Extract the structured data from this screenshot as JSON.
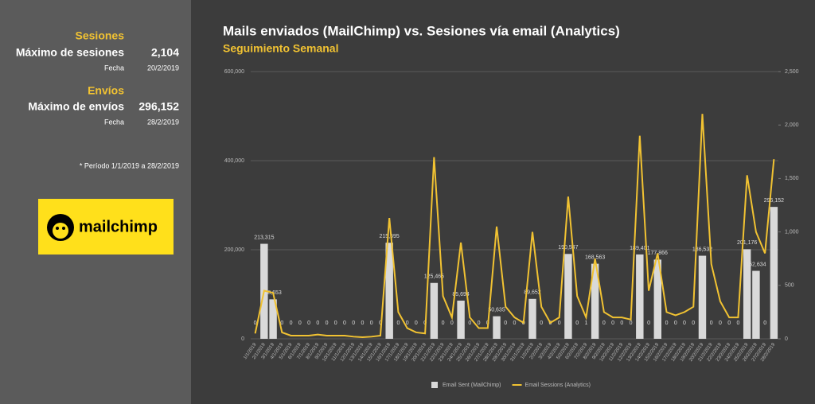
{
  "sidebar": {
    "sessions": {
      "heading": "Sesiones",
      "label": "Máximo de sesiones",
      "value": "2,104",
      "date_label": "Fecha",
      "date": "20/2/2019"
    },
    "sends": {
      "heading": "Envíos",
      "label": "Máximo de envíos",
      "value": "296,152",
      "date_label": "Fecha",
      "date": "28/2/2019"
    },
    "note": "* Período 1/1/2019 a 28/2/2019",
    "logo": "mailchimp"
  },
  "chart_data": {
    "type": "combo",
    "title": "Mails enviados (MailChimp) vs. Sesiones vía email (Analytics)",
    "subtitle": "Seguimiento Semanal",
    "categories": [
      "1/1/2019",
      "2/1/2019",
      "3/1/2019",
      "4/1/2019",
      "5/1/2019",
      "6/1/2019",
      "7/1/2019",
      "8/1/2019",
      "9/1/2019",
      "10/1/2019",
      "11/1/2019",
      "12/1/2019",
      "13/1/2019",
      "14/1/2019",
      "15/1/2019",
      "16/1/2019",
      "17/1/2019",
      "18/1/2019",
      "19/1/2019",
      "20/1/2019",
      "21/1/2019",
      "22/1/2019",
      "23/1/2019",
      "24/1/2019",
      "25/1/2019",
      "26/1/2019",
      "27/1/2019",
      "28/1/2019",
      "29/1/2019",
      "30/1/2019",
      "31/1/2019",
      "1/2/2019",
      "2/2/2019",
      "3/2/2019",
      "4/2/2019",
      "5/2/2019",
      "6/2/2019",
      "7/2/2019",
      "8/2/2019",
      "9/2/2019",
      "10/2/2019",
      "11/2/2019",
      "12/2/2019",
      "13/2/2019",
      "14/2/2019",
      "15/2/2019",
      "16/2/2019",
      "17/2/2019",
      "18/2/2019",
      "19/2/2019",
      "20/2/2019",
      "21/2/2019",
      "22/2/2019",
      "23/2/2019",
      "24/2/2019",
      "25/2/2019",
      "26/2/2019",
      "27/2/2019",
      "28/2/2019"
    ],
    "series": [
      {
        "name": "Email Sent (MailChimp)",
        "type": "bar",
        "color": "#d9d9d9",
        "values": [
          0,
          213315,
          88653,
          0,
          0,
          0,
          0,
          0,
          0,
          0,
          0,
          0,
          0,
          0,
          0,
          215695,
          0,
          0,
          0,
          0,
          125465,
          0,
          0,
          85694,
          0,
          0,
          0,
          50635,
          0,
          0,
          0,
          89652,
          0,
          0,
          0,
          190547,
          0,
          1,
          168563,
          0,
          0,
          0,
          0,
          189401,
          0,
          177866,
          0,
          0,
          0,
          0,
          186532,
          0,
          0,
          0,
          0,
          201176,
          152634,
          0,
          296152
        ],
        "value_labels": [
          "0",
          "213,315",
          "88,653",
          "0",
          "0",
          "0",
          "0",
          "0",
          "0",
          "0",
          "0",
          "0",
          "0",
          "0",
          "0",
          "215,695",
          "0",
          "0",
          "0",
          "0",
          "125,465",
          "0",
          "0",
          "85,694",
          "0",
          "0",
          "0",
          "50,635",
          "0",
          "0",
          "0",
          "89,652",
          "0",
          "0",
          "0",
          "190,547",
          "0",
          "1",
          "168,563",
          "0",
          "0",
          "0",
          "0",
          "189,401",
          "0",
          "177,866",
          "0",
          "0",
          "0",
          "0",
          "186,532",
          "0",
          "0",
          "0",
          "0",
          "201,176",
          "152,634",
          "0",
          "296,152"
        ]
      },
      {
        "name": "Email Sessions (Analytics)",
        "type": "line",
        "axis": "y2",
        "color": "#f1c232",
        "values": [
          50,
          450,
          430,
          60,
          30,
          30,
          30,
          40,
          30,
          30,
          30,
          20,
          15,
          20,
          30,
          1130,
          250,
          100,
          60,
          50,
          1700,
          400,
          200,
          900,
          200,
          100,
          100,
          1050,
          300,
          200,
          150,
          1000,
          300,
          150,
          200,
          1330,
          400,
          200,
          750,
          250,
          200,
          200,
          180,
          1900,
          450,
          800,
          250,
          220,
          250,
          300,
          2104,
          700,
          350,
          200,
          200,
          1530,
          1000,
          800,
          1680
        ]
      }
    ],
    "ylim": [
      0,
      600000
    ],
    "yticks": [
      0,
      {
        "value": 200000,
        "label": "200,000"
      },
      {
        "value": 400000,
        "label": "400,000"
      },
      {
        "value": 600000,
        "label": "600,000"
      }
    ],
    "y2lim": [
      0,
      2500
    ],
    "y2ticks": [
      0,
      500,
      {
        "value": 1000,
        "label": "1,000"
      },
      {
        "value": 1500,
        "label": "1,500"
      },
      {
        "value": 2000,
        "label": "2,000"
      },
      {
        "value": 2500,
        "label": "2,500"
      }
    ],
    "grid": true,
    "legend": "bottom"
  }
}
